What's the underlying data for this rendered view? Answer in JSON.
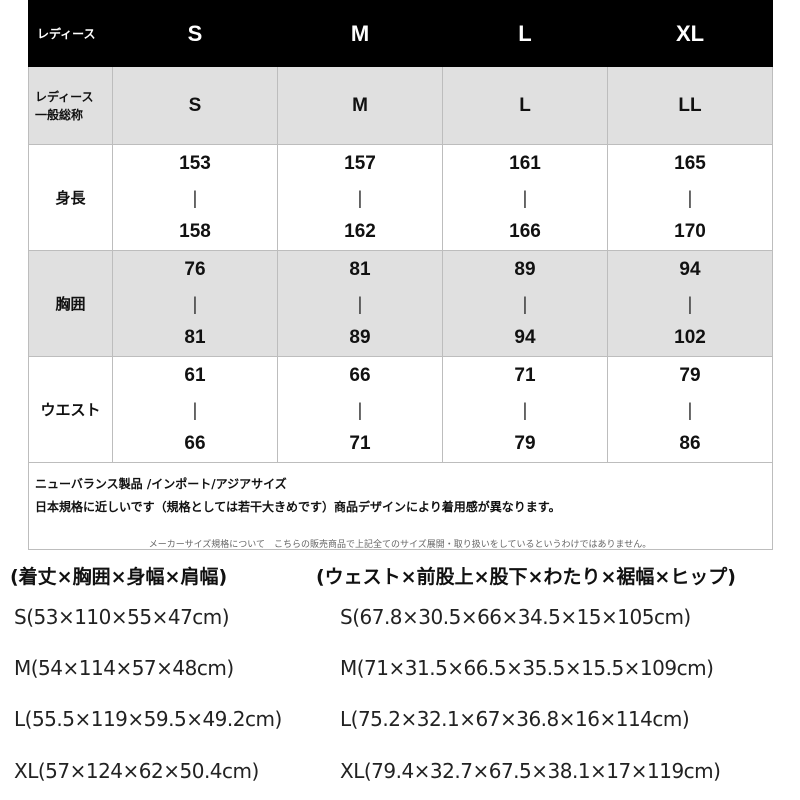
{
  "table": {
    "header": {
      "label": "レディース",
      "sizes": [
        "S",
        "M",
        "L",
        "XL"
      ]
    },
    "general": {
      "label_line1": "レディース",
      "label_line2": "一般総称",
      "sizes": [
        "S",
        "M",
        "L",
        "LL"
      ]
    },
    "rows": [
      {
        "label": "身長",
        "separator": "|",
        "ranges": [
          [
            "153",
            "158"
          ],
          [
            "157",
            "162"
          ],
          [
            "161",
            "166"
          ],
          [
            "165",
            "170"
          ]
        ]
      },
      {
        "label": "胸囲",
        "separator": "|",
        "ranges": [
          [
            "76",
            "81"
          ],
          [
            "81",
            "89"
          ],
          [
            "89",
            "94"
          ],
          [
            "94",
            "102"
          ]
        ]
      },
      {
        "label": "ウエスト",
        "separator": "|",
        "ranges": [
          [
            "61",
            "66"
          ],
          [
            "66",
            "71"
          ],
          [
            "71",
            "79"
          ],
          [
            "79",
            "86"
          ]
        ]
      }
    ],
    "note_line1": "ニューバランス製品 /インポート/アジアサイズ",
    "note_line2": "日本規格に近しいです（規格としては若干大きめです）商品デザインにより着用感が異なります。"
  },
  "disclaimer": "メーカーサイズ規格について　こちらの販売商品で上記全てのサイズ展開・取り扱いをしているというわけではありません。",
  "measure": {
    "left_title": "(着丈×胸囲×身幅×肩幅)",
    "right_title": "(ウェスト×前股上×股下×わたり×裾幅×ヒップ)",
    "left_rows": [
      "S(53×110×55×47cm)",
      "M(54×114×57×48cm)",
      "L(55.5×119×59.5×49.2cm)",
      "XL(57×124×62×50.4cm)"
    ],
    "right_rows": [
      "S(67.8×30.5×66×34.5×15×105cm)",
      "M(71×31.5×66.5×35.5×15.5×109cm)",
      "L(75.2×32.1×67×36.8×16×114cm)",
      "XL(79.4×32.7×67.5×38.1×17×119cm)"
    ]
  }
}
